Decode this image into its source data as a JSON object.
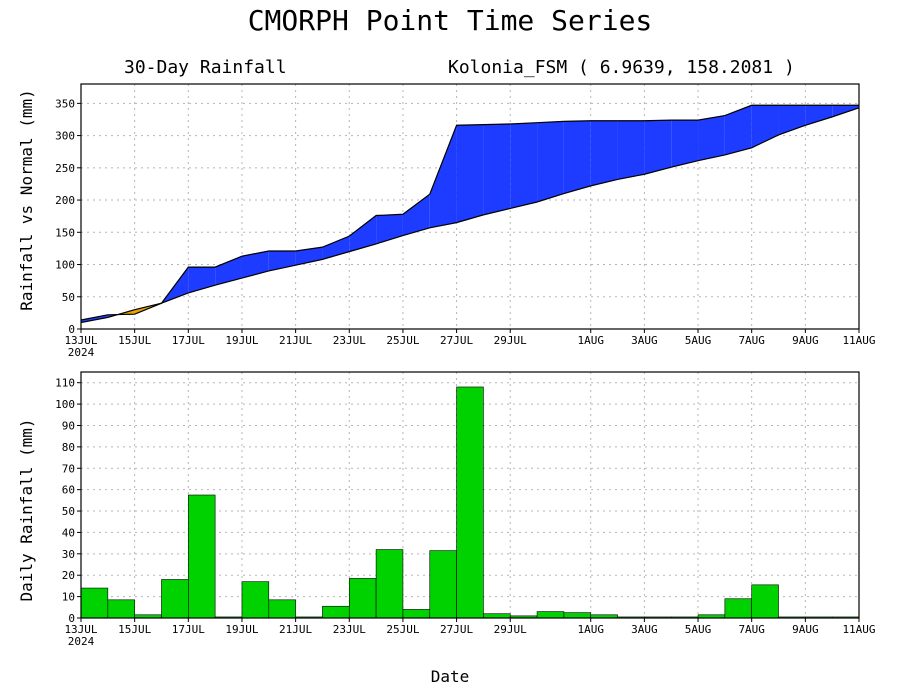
{
  "title": "CMORPH Point Time Series",
  "xlabel": "Date",
  "chart_data": [
    {
      "type": "area",
      "subtitle_left": "30-Day Rainfall",
      "subtitle_right": "Kolonia_FSM ( 6.9639, 158.2081 )",
      "ylabel": "Rainfall vs Normal (mm)",
      "x": [
        "13JUL",
        "14JUL",
        "15JUL",
        "16JUL",
        "17JUL",
        "18JUL",
        "19JUL",
        "20JUL",
        "21JUL",
        "22JUL",
        "23JUL",
        "24JUL",
        "25JUL",
        "26JUL",
        "27JUL",
        "28JUL",
        "29JUL",
        "30JUL",
        "31JUL",
        "1AUG",
        "2AUG",
        "3AUG",
        "4AUG",
        "5AUG",
        "6AUG",
        "7AUG",
        "8AUG",
        "9AUG",
        "10AUG",
        "11AUG"
      ],
      "x_tick_labels": [
        "13JUL",
        "15JUL",
        "17JUL",
        "19JUL",
        "21JUL",
        "23JUL",
        "25JUL",
        "27JUL",
        "29JUL",
        "1AUG",
        "3AUG",
        "5AUG",
        "7AUG",
        "9AUG",
        "11AUG"
      ],
      "x_year_label": "2024",
      "ylim": [
        0,
        380
      ],
      "yticks": [
        0,
        50,
        100,
        150,
        200,
        250,
        300,
        350
      ],
      "series": [
        {
          "values": [
            14,
            22,
            23,
            40,
            96,
            96,
            113,
            121,
            121,
            127,
            144,
            176,
            178,
            209,
            316,
            317,
            318,
            320,
            322,
            323,
            323,
            323,
            324,
            324,
            331,
            347,
            347,
            347,
            347,
            347
          ]
        },
        {
          "values": [
            10,
            18,
            30,
            40,
            56,
            68,
            79,
            90,
            99,
            108,
            120,
            132,
            145,
            157,
            165,
            177,
            187,
            197,
            210,
            222,
            232,
            240,
            251,
            261,
            270,
            281,
            301,
            316,
            329,
            343
          ]
        }
      ],
      "colors": {
        "above": "#1e3cff",
        "below": "#e8a200",
        "line": "#000000"
      },
      "grid": true
    },
    {
      "type": "bar",
      "ylabel": "Daily Rainfall (mm)",
      "x": [
        "13JUL",
        "14JUL",
        "15JUL",
        "16JUL",
        "17JUL",
        "18JUL",
        "19JUL",
        "20JUL",
        "21JUL",
        "22JUL",
        "23JUL",
        "24JUL",
        "25JUL",
        "26JUL",
        "27JUL",
        "28JUL",
        "29JUL",
        "30JUL",
        "31JUL",
        "1AUG",
        "2AUG",
        "3AUG",
        "4AUG",
        "5AUG",
        "6AUG",
        "7AUG",
        "8AUG",
        "9AUG",
        "10AUG"
      ],
      "values": [
        14,
        8.5,
        1.5,
        18,
        57.5,
        0.5,
        17,
        8.5,
        0.5,
        5.5,
        18.5,
        32,
        4,
        31.5,
        108,
        2,
        1,
        3,
        2.5,
        1.5,
        0.5,
        0.5,
        0.5,
        1.5,
        9,
        15.5,
        0.5,
        0.5,
        0.5
      ],
      "x_tick_labels": [
        "13JUL",
        "15JUL",
        "17JUL",
        "19JUL",
        "21JUL",
        "23JUL",
        "25JUL",
        "27JUL",
        "29JUL",
        "1AUG",
        "3AUG",
        "5AUG",
        "7AUG",
        "9AUG",
        "11AUG"
      ],
      "x_year_label": "2024",
      "ylim": [
        0,
        115
      ],
      "yticks": [
        0,
        10,
        20,
        30,
        40,
        50,
        60,
        70,
        80,
        90,
        100,
        110
      ],
      "colors": {
        "bar": "#00d200",
        "edge": "#000000"
      },
      "grid": true
    }
  ]
}
